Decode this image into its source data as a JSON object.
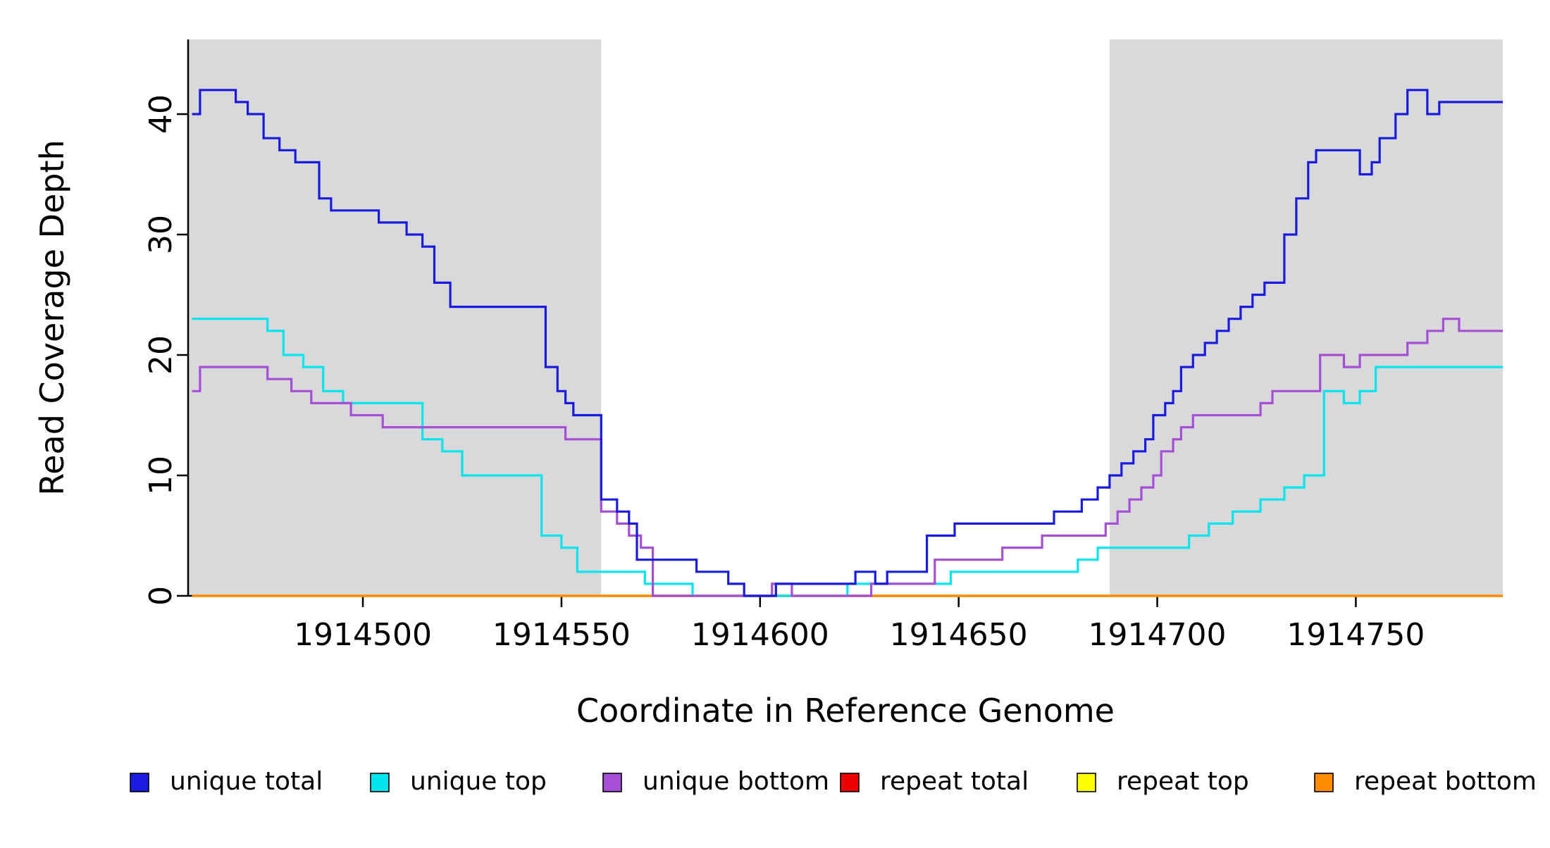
{
  "figure": {
    "background": "#ffffff",
    "shade_color": "#d9d9d9"
  },
  "chart_data": {
    "type": "line",
    "subtype": "step",
    "title": "",
    "xlabel": "Coordinate in Reference Genome",
    "ylabel": "Read Coverage Depth",
    "xlim": [
      1914456,
      1914787
    ],
    "ylim": [
      0,
      46.2
    ],
    "xticks": [
      1914500,
      1914550,
      1914600,
      1914650,
      1914700,
      1914750
    ],
    "yticks": [
      0,
      10,
      20,
      30,
      40
    ],
    "grid": false,
    "legend_position": "bottom",
    "shaded_regions": [
      {
        "x0": 1914456,
        "x1": 1914560,
        "color": "#d9d9d9"
      },
      {
        "x0": 1914688,
        "x1": 1914787,
        "color": "#d9d9d9"
      }
    ],
    "series": [
      {
        "name": "unique total",
        "color": "#1a1ae0",
        "steps": [
          [
            1914457,
            40
          ],
          [
            1914459,
            42
          ],
          [
            1914468,
            41
          ],
          [
            1914471,
            40
          ],
          [
            1914475,
            38
          ],
          [
            1914479,
            37
          ],
          [
            1914483,
            36
          ],
          [
            1914489,
            33
          ],
          [
            1914492,
            32
          ],
          [
            1914504,
            31
          ],
          [
            1914511,
            30
          ],
          [
            1914515,
            29
          ],
          [
            1914518,
            26
          ],
          [
            1914522,
            24
          ],
          [
            1914546,
            19
          ],
          [
            1914549,
            17
          ],
          [
            1914551,
            16
          ],
          [
            1914553,
            15
          ],
          [
            1914560,
            8
          ],
          [
            1914564,
            7
          ],
          [
            1914567,
            6
          ],
          [
            1914569,
            3
          ],
          [
            1914584,
            2
          ],
          [
            1914592,
            1
          ],
          [
            1914596,
            0
          ],
          [
            1914604,
            1
          ],
          [
            1914624,
            2
          ],
          [
            1914629,
            1
          ],
          [
            1914632,
            2
          ],
          [
            1914642,
            5
          ],
          [
            1914649,
            6
          ],
          [
            1914674,
            7
          ],
          [
            1914681,
            8
          ],
          [
            1914685,
            9
          ],
          [
            1914688,
            10
          ],
          [
            1914691,
            11
          ],
          [
            1914694,
            12
          ],
          [
            1914697,
            13
          ],
          [
            1914699,
            15
          ],
          [
            1914702,
            16
          ],
          [
            1914704,
            17
          ],
          [
            1914706,
            19
          ],
          [
            1914709,
            20
          ],
          [
            1914712,
            21
          ],
          [
            1914715,
            22
          ],
          [
            1914718,
            23
          ],
          [
            1914721,
            24
          ],
          [
            1914724,
            25
          ],
          [
            1914727,
            26
          ],
          [
            1914732,
            30
          ],
          [
            1914735,
            33
          ],
          [
            1914738,
            36
          ],
          [
            1914740,
            37
          ],
          [
            1914751,
            35
          ],
          [
            1914754,
            36
          ],
          [
            1914756,
            38
          ],
          [
            1914760,
            40
          ],
          [
            1914763,
            42
          ],
          [
            1914768,
            40
          ],
          [
            1914771,
            41
          ]
        ]
      },
      {
        "name": "unique top",
        "color": "#00e5ee",
        "steps": [
          [
            1914457,
            23
          ],
          [
            1914476,
            22
          ],
          [
            1914480,
            20
          ],
          [
            1914485,
            19
          ],
          [
            1914490,
            17
          ],
          [
            1914495,
            16
          ],
          [
            1914515,
            13
          ],
          [
            1914520,
            12
          ],
          [
            1914525,
            10
          ],
          [
            1914545,
            5
          ],
          [
            1914550,
            4
          ],
          [
            1914554,
            2
          ],
          [
            1914571,
            1
          ],
          [
            1914583,
            0
          ],
          [
            1914622,
            1
          ],
          [
            1914648,
            2
          ],
          [
            1914680,
            3
          ],
          [
            1914685,
            4
          ],
          [
            1914708,
            5
          ],
          [
            1914713,
            6
          ],
          [
            1914719,
            7
          ],
          [
            1914726,
            8
          ],
          [
            1914732,
            9
          ],
          [
            1914737,
            10
          ],
          [
            1914742,
            17
          ],
          [
            1914747,
            16
          ],
          [
            1914751,
            17
          ],
          [
            1914755,
            19
          ]
        ]
      },
      {
        "name": "unique bottom",
        "color": "#a44fd6",
        "steps": [
          [
            1914457,
            17
          ],
          [
            1914459,
            19
          ],
          [
            1914476,
            18
          ],
          [
            1914482,
            17
          ],
          [
            1914487,
            16
          ],
          [
            1914497,
            15
          ],
          [
            1914505,
            14
          ],
          [
            1914551,
            13
          ],
          [
            1914560,
            7
          ],
          [
            1914564,
            6
          ],
          [
            1914567,
            5
          ],
          [
            1914570,
            4
          ],
          [
            1914573,
            0
          ],
          [
            1914603,
            1
          ],
          [
            1914608,
            0
          ],
          [
            1914628,
            1
          ],
          [
            1914644,
            3
          ],
          [
            1914661,
            4
          ],
          [
            1914671,
            5
          ],
          [
            1914687,
            6
          ],
          [
            1914690,
            7
          ],
          [
            1914693,
            8
          ],
          [
            1914696,
            9
          ],
          [
            1914699,
            10
          ],
          [
            1914701,
            12
          ],
          [
            1914704,
            13
          ],
          [
            1914706,
            14
          ],
          [
            1914709,
            15
          ],
          [
            1914726,
            16
          ],
          [
            1914729,
            17
          ],
          [
            1914741,
            20
          ],
          [
            1914747,
            19
          ],
          [
            1914751,
            20
          ],
          [
            1914763,
            21
          ],
          [
            1914768,
            22
          ],
          [
            1914772,
            23
          ],
          [
            1914776,
            22
          ]
        ]
      },
      {
        "name": "repeat total",
        "color": "#ee0000",
        "steps": [
          [
            1914457,
            0
          ]
        ]
      },
      {
        "name": "repeat top",
        "color": "#ffff00",
        "steps": [
          [
            1914457,
            0
          ]
        ]
      },
      {
        "name": "repeat bottom",
        "color": "#ff8c00",
        "steps": [
          [
            1914457,
            0
          ]
        ]
      }
    ],
    "legend_entries": [
      {
        "label": "unique total",
        "color": "#1a1ae0"
      },
      {
        "label": "unique top",
        "color": "#00e5ee"
      },
      {
        "label": "unique bottom",
        "color": "#a44fd6"
      },
      {
        "label": "repeat total",
        "color": "#ee0000"
      },
      {
        "label": "repeat top",
        "color": "#ffff00"
      },
      {
        "label": "repeat bottom",
        "color": "#ff8c00"
      }
    ]
  }
}
